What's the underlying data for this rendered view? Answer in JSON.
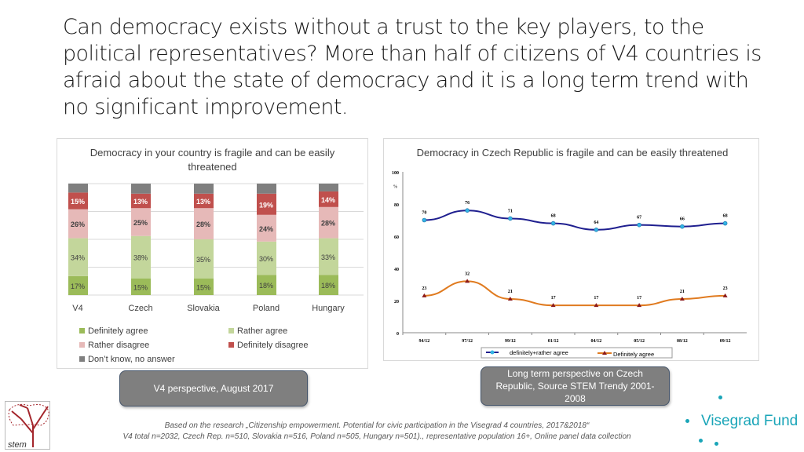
{
  "title": "Can democracy exists without a trust to the key players, to the political representatives? More than half of citizens of V4 countries is afraid about the state of democracy and it is a long term trend with no significant improvement.",
  "chart_data": [
    {
      "type": "bar",
      "stacked": true,
      "title": "Democracy in your country is fragile and can be easily threatened",
      "categories": [
        "V4",
        "Czech",
        "Slovakia",
        "Poland",
        "Hungary"
      ],
      "ylim": [
        0,
        100
      ],
      "grid": true,
      "legend": "bottom",
      "series": [
        {
          "name": "Definitely agree",
          "color": "#9bbb59",
          "values": [
            17,
            15,
            15,
            18,
            18
          ]
        },
        {
          "name": "Rather agree",
          "color": "#c3d69b",
          "values": [
            34,
            38,
            35,
            30,
            33
          ]
        },
        {
          "name": "Rather disagree",
          "color": "#e6b9b8",
          "values": [
            26,
            25,
            28,
            24,
            28
          ]
        },
        {
          "name": "Definitely disagree",
          "color": "#c0504d",
          "values": [
            15,
            13,
            13,
            19,
            14
          ]
        },
        {
          "name": "Don’t know, no answer",
          "color": "#7f7f7f",
          "values": [
            8,
            9,
            9,
            9,
            7
          ]
        }
      ]
    },
    {
      "type": "line",
      "title": "Democracy in Czech Republic is fragile and can be easily threatened",
      "ylabel": "%",
      "ylim": [
        0,
        100
      ],
      "yticks": [
        0,
        20,
        40,
        60,
        80,
        100
      ],
      "categories": [
        "94/12",
        "97/12",
        "99/12",
        "01/12",
        "04/12",
        "05/12",
        "08/12",
        "09/12"
      ],
      "legend": "bottom",
      "series": [
        {
          "name": "definitely+rather agree",
          "color": "#1f1f8f",
          "marker_color": "#33b5e5",
          "marker": "circle",
          "values": [
            70,
            76,
            71,
            68,
            64,
            67,
            66,
            68
          ]
        },
        {
          "name": "Definitely agree",
          "color": "#e07b20",
          "marker_color": "#8b1a1a",
          "marker": "triangle",
          "values": [
            23,
            32,
            21,
            17,
            17,
            17,
            21,
            23
          ]
        }
      ]
    }
  ],
  "notes": {
    "left": "V4 perspective, August 2017",
    "right": "Long term perspective on Czech Republic, Source STEM Trendy 2001-2008"
  },
  "footer": {
    "line1": "Based on the research „Citizenship empowerment. Potential for civic participation in the Visegrad 4 countries, 2017&2018“",
    "line2": "V4 total n=2032, Czech Rep. n=510, Slovakia n=516, Poland n=505, Hungary n=501)., representative population 16+, Online panel data collection"
  },
  "logos": {
    "stem": "stem",
    "visegrad": "Visegrad Fund"
  }
}
